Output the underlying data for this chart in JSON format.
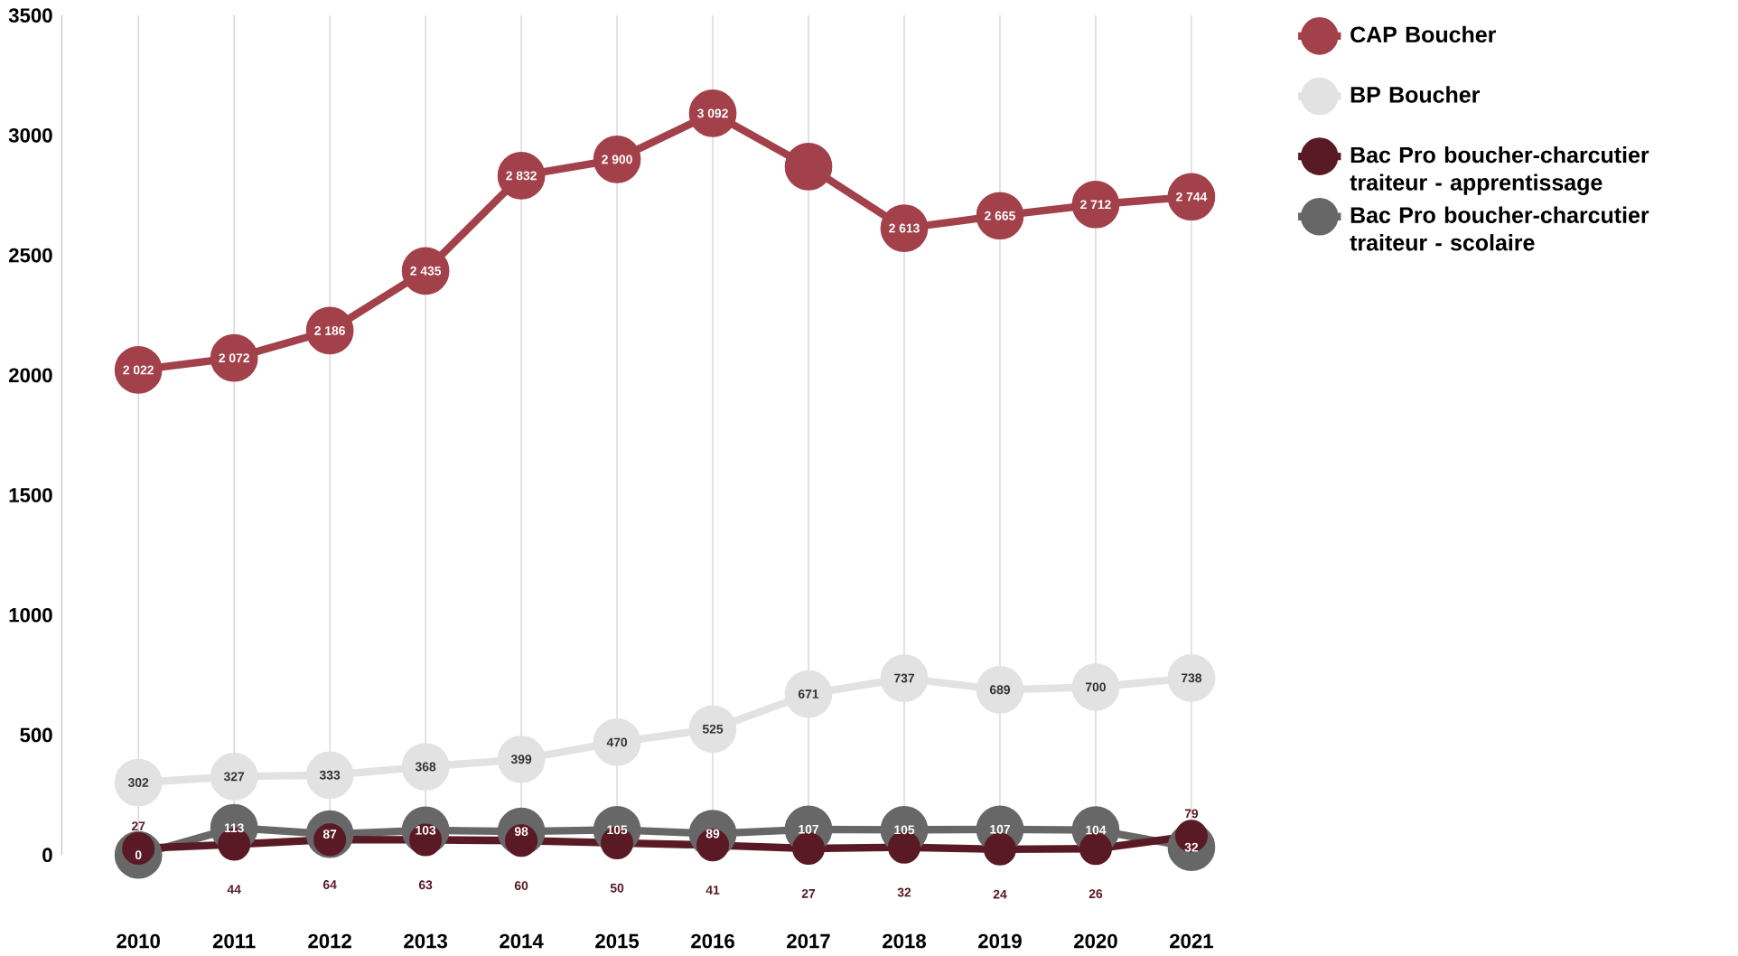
{
  "chart_data": {
    "type": "line",
    "categories": [
      "2010",
      "2011",
      "2012",
      "2013",
      "2014",
      "2015",
      "2016",
      "2017",
      "2018",
      "2019",
      "2020",
      "2021"
    ],
    "series": [
      {
        "name": "CAP Boucher",
        "color": "#a3414b",
        "values": [
          2022,
          2072,
          2186,
          2435,
          2832,
          2900,
          3092,
          2870,
          2613,
          2665,
          2712,
          2744
        ],
        "value_labels": [
          "2 022",
          "2 072",
          "2 186",
          "2 435",
          "2 832",
          "2 900",
          "3 092",
          null,
          "2 613",
          "2 665",
          "2 712",
          "2 744"
        ]
      },
      {
        "name": "BP Boucher",
        "color": "#e2e2e2",
        "values": [
          302,
          327,
          333,
          368,
          399,
          470,
          525,
          671,
          737,
          689,
          700,
          738
        ],
        "value_labels": [
          "302",
          "327",
          "333",
          "368",
          "399",
          "470",
          "525",
          "671",
          "737",
          "689",
          "700",
          "738"
        ]
      },
      {
        "name": "Bac Pro boucher-charcutier traiteur - apprentissage",
        "color": "#5a1a25",
        "values": [
          27,
          44,
          64,
          63,
          60,
          50,
          41,
          27,
          32,
          24,
          26,
          79
        ],
        "value_labels": [
          "27",
          "44",
          "64",
          "63",
          "60",
          "50",
          "41",
          "27",
          "32",
          "24",
          "26",
          "79"
        ]
      },
      {
        "name": "Bac Pro boucher-charcutier traiteur - scolaire",
        "color": "#676767",
        "values": [
          0,
          113,
          87,
          103,
          98,
          105,
          89,
          107,
          105,
          107,
          104,
          32
        ],
        "value_labels": [
          "0",
          "113",
          "87",
          "103",
          "98",
          "105",
          "89",
          "107",
          "105",
          "107",
          "104",
          "32"
        ]
      }
    ],
    "ylim": [
      0,
      3500
    ],
    "yticks": [
      0,
      500,
      1000,
      1500,
      2000,
      2500,
      3000,
      3500
    ],
    "grid": "x",
    "legend": "right",
    "marker": "circle",
    "line_style": "solid"
  }
}
